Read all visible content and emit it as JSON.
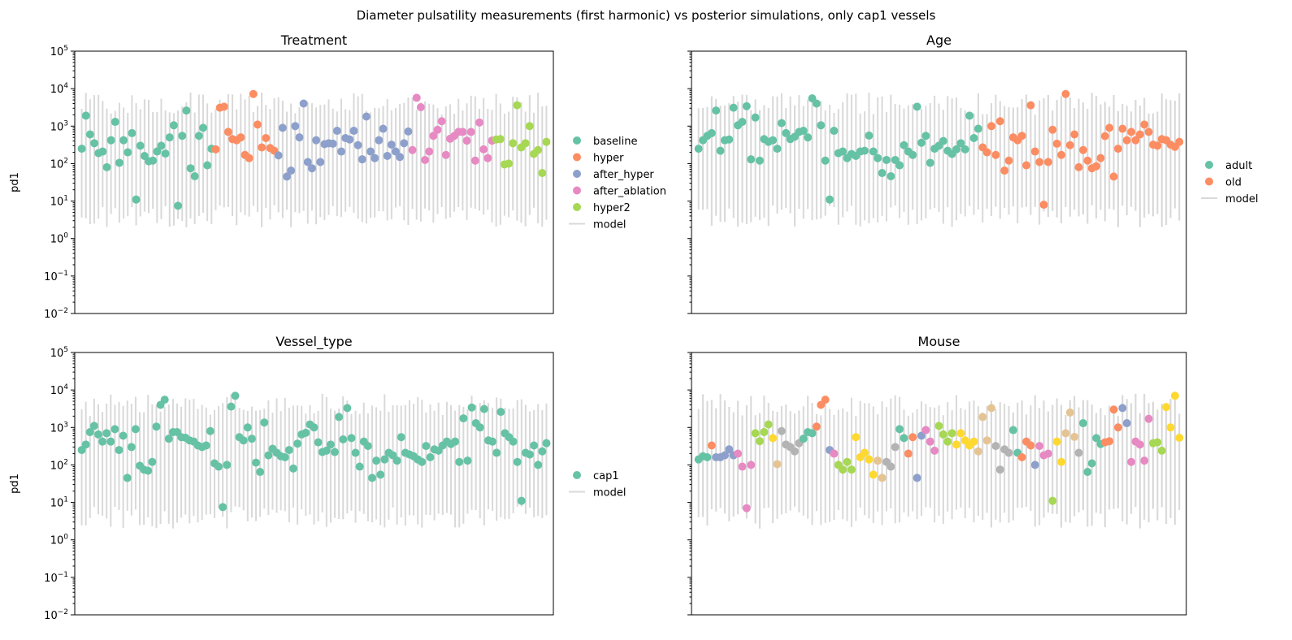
{
  "title": "Diameter pulsatility measurements (first harmonic) vs posterior simulations, only cap1 vessels",
  "chart_data": [
    {
      "type": "scatter",
      "title": "Treatment",
      "ylabel": "pd1",
      "yscale": "log",
      "ylim": [
        0.01,
        100000
      ],
      "yticks": [
        {
          "base": "10",
          "exp": "5",
          "value": 100000
        },
        {
          "base": "10",
          "exp": "4",
          "value": 10000
        },
        {
          "base": "10",
          "exp": "3",
          "value": 1000
        },
        {
          "base": "10",
          "exp": "2",
          "value": 100
        },
        {
          "base": "10",
          "exp": "1",
          "value": 10
        },
        {
          "base": "10",
          "exp": "0",
          "value": 1
        },
        {
          "base": "10",
          "exp": "−1",
          "value": 0.1
        },
        {
          "base": "10",
          "exp": "−2",
          "value": 0.01
        }
      ],
      "show_tick_labels": true,
      "legend_position": "outside-right",
      "legend_model_label": "model",
      "series": [
        {
          "name": "baseline",
          "color": "#66c2a5",
          "values": [
            250,
            1900,
            600,
            350,
            190,
            210,
            80,
            420,
            1300,
            105,
            420,
            200,
            650,
            11,
            300,
            160,
            115,
            120,
            210,
            300,
            185,
            500,
            1050,
            7.5,
            550,
            2600,
            75,
            46,
            550,
            900,
            90,
            250
          ]
        },
        {
          "name": "hyper",
          "color": "#fc8d62",
          "values": [
            240,
            3100,
            3300,
            700,
            450,
            420,
            500,
            170,
            140,
            7200,
            1100,
            270,
            480,
            260,
            220
          ]
        },
        {
          "name": "after_hyper",
          "color": "#8da0cb",
          "values": [
            165,
            900,
            45,
            65,
            1000,
            500,
            4000,
            110,
            75,
            420,
            110,
            330,
            350,
            340,
            750,
            210,
            480,
            440,
            750,
            310,
            130,
            1800,
            210,
            140,
            420,
            850,
            160,
            320,
            210,
            150,
            350,
            720
          ]
        },
        {
          "name": "after_ablation",
          "color": "#e78ac3",
          "values": [
            230,
            5700,
            3200,
            125,
            210,
            550,
            800,
            1350,
            170,
            460,
            550,
            700,
            700,
            410,
            700,
            120,
            1250,
            240,
            140,
            410
          ]
        },
        {
          "name": "hyper2",
          "color": "#a6d854",
          "values": [
            440,
            450,
            95,
            100,
            350,
            3600,
            270,
            350,
            1000,
            180,
            230,
            56,
            380
          ]
        }
      ],
      "model_intervals_note": "posterior simulation intervals, one per measurement"
    },
    {
      "type": "scatter",
      "title": "Age",
      "ylabel": "",
      "yscale": "log",
      "ylim": [
        0.01,
        100000
      ],
      "show_tick_labels": false,
      "legend_position": "outside-right",
      "legend_model_label": "model",
      "series": [
        {
          "name": "adult",
          "color": "#66c2a5",
          "values": [
            250,
            420,
            550,
            650,
            2600,
            220,
            420,
            440,
            3100,
            1050,
            1300,
            3400,
            130,
            1700,
            120,
            450,
            380,
            420,
            250,
            1200,
            650,
            450,
            520,
            700,
            750,
            500,
            5500,
            4000,
            1050,
            120,
            11,
            750,
            190,
            210,
            140,
            180,
            160,
            210,
            220,
            560,
            210,
            140,
            56,
            125,
            46,
            125,
            90,
            310,
            210,
            170,
            3300,
            360,
            550,
            105,
            250,
            300,
            400,
            220,
            180,
            240,
            350,
            240,
            1900,
            480,
            850
          ]
        },
        {
          "name": "old",
          "color": "#fc8d62",
          "values": [
            270,
            200,
            1000,
            170,
            1350,
            65,
            120,
            500,
            420,
            550,
            90,
            3600,
            210,
            110,
            8,
            110,
            800,
            340,
            170,
            7200,
            310,
            600,
            80,
            230,
            120,
            75,
            85,
            140,
            540,
            900,
            45,
            250,
            850,
            420,
            700,
            420,
            600,
            1100,
            700,
            320,
            300,
            450,
            420,
            320,
            280,
            380
          ]
        }
      ]
    },
    {
      "type": "scatter",
      "title": "Vessel_type",
      "ylabel": "pd1",
      "yscale": "log",
      "ylim": [
        0.01,
        100000
      ],
      "show_tick_labels": true,
      "legend_position": "outside-right",
      "legend_model_label": "model",
      "series": [
        {
          "name": "cap1",
          "color": "#66c2a5",
          "values": [
            250,
            350,
            750,
            1100,
            650,
            420,
            700,
            420,
            900,
            250,
            600,
            45,
            300,
            900,
            95,
            75,
            70,
            120,
            1050,
            4000,
            5500,
            500,
            750,
            750,
            550,
            530,
            450,
            420,
            330,
            300,
            330,
            800,
            110,
            90,
            7.5,
            100,
            3600,
            7000,
            550,
            450,
            1000,
            500,
            115,
            65,
            1350,
            180,
            270,
            210,
            170,
            160,
            250,
            80,
            370,
            650,
            720,
            1200,
            1000,
            400,
            220,
            240,
            350,
            220,
            1900,
            480,
            3300,
            520,
            210,
            90,
            420,
            320,
            45,
            130,
            55,
            140,
            210,
            180,
            130,
            550,
            210,
            190,
            170,
            140,
            120,
            320,
            160,
            260,
            240,
            330,
            420,
            360,
            420,
            120,
            1750,
            130,
            3400,
            1300,
            1000,
            3100,
            450,
            420,
            210,
            2600,
            700,
            550,
            420,
            120,
            11,
            210,
            190,
            330,
            100,
            230,
            380
          ]
        }
      ]
    },
    {
      "type": "scatter",
      "title": "Mouse",
      "ylabel": "",
      "yscale": "log",
      "ylim": [
        0.01,
        100000
      ],
      "show_tick_labels": false,
      "legend_position": "none",
      "points": [
        {
          "v": 140,
          "c": "#66c2a5"
        },
        {
          "v": 170,
          "c": "#66c2a5"
        },
        {
          "v": 160,
          "c": "#66c2a5"
        },
        {
          "v": 330,
          "c": "#fc8d62"
        },
        {
          "v": 160,
          "c": "#8da0cb"
        },
        {
          "v": 160,
          "c": "#8da0cb"
        },
        {
          "v": 180,
          "c": "#8da0cb"
        },
        {
          "v": 260,
          "c": "#8da0cb"
        },
        {
          "v": 180,
          "c": "#8da0cb"
        },
        {
          "v": 200,
          "c": "#e78ac3"
        },
        {
          "v": 90,
          "c": "#e78ac3"
        },
        {
          "v": 7,
          "c": "#e78ac3"
        },
        {
          "v": 100,
          "c": "#e78ac3"
        },
        {
          "v": 700,
          "c": "#a6d854"
        },
        {
          "v": 430,
          "c": "#a6d854"
        },
        {
          "v": 750,
          "c": "#a6d854"
        },
        {
          "v": 1200,
          "c": "#a6d854"
        },
        {
          "v": 520,
          "c": "#ffd92f"
        },
        {
          "v": 105,
          "c": "#e5c494"
        },
        {
          "v": 800,
          "c": "#b3b3b3"
        },
        {
          "v": 350,
          "c": "#b3b3b3"
        },
        {
          "v": 300,
          "c": "#b3b3b3"
        },
        {
          "v": 230,
          "c": "#b3b3b3"
        },
        {
          "v": 380,
          "c": "#b3b3b3"
        },
        {
          "v": 500,
          "c": "#66c2a5"
        },
        {
          "v": 750,
          "c": "#66c2a5"
        },
        {
          "v": 700,
          "c": "#66c2a5"
        },
        {
          "v": 1050,
          "c": "#fc8d62"
        },
        {
          "v": 4000,
          "c": "#fc8d62"
        },
        {
          "v": 5500,
          "c": "#fc8d62"
        },
        {
          "v": 250,
          "c": "#8da0cb"
        },
        {
          "v": 200,
          "c": "#e78ac3"
        },
        {
          "v": 100,
          "c": "#a6d854"
        },
        {
          "v": 75,
          "c": "#a6d854"
        },
        {
          "v": 120,
          "c": "#a6d854"
        },
        {
          "v": 75,
          "c": "#a6d854"
        },
        {
          "v": 550,
          "c": "#ffd92f"
        },
        {
          "v": 160,
          "c": "#ffd92f"
        },
        {
          "v": 210,
          "c": "#ffd92f"
        },
        {
          "v": 140,
          "c": "#ffd92f"
        },
        {
          "v": 55,
          "c": "#ffd92f"
        },
        {
          "v": 130,
          "c": "#e5c494"
        },
        {
          "v": 45,
          "c": "#e5c494"
        },
        {
          "v": 120,
          "c": "#b3b3b3"
        },
        {
          "v": 90,
          "c": "#b3b3b3"
        },
        {
          "v": 300,
          "c": "#b3b3b3"
        },
        {
          "v": 900,
          "c": "#66c2a5"
        },
        {
          "v": 520,
          "c": "#66c2a5"
        },
        {
          "v": 200,
          "c": "#fc8d62"
        },
        {
          "v": 550,
          "c": "#fc8d62"
        },
        {
          "v": 45,
          "c": "#8da0cb"
        },
        {
          "v": 600,
          "c": "#8da0cb"
        },
        {
          "v": 850,
          "c": "#e78ac3"
        },
        {
          "v": 420,
          "c": "#e78ac3"
        },
        {
          "v": 240,
          "c": "#e78ac3"
        },
        {
          "v": 1100,
          "c": "#a6d854"
        },
        {
          "v": 650,
          "c": "#a6d854"
        },
        {
          "v": 420,
          "c": "#a6d854"
        },
        {
          "v": 700,
          "c": "#a6d854"
        },
        {
          "v": 350,
          "c": "#ffd92f"
        },
        {
          "v": 700,
          "c": "#ffd92f"
        },
        {
          "v": 450,
          "c": "#ffd92f"
        },
        {
          "v": 330,
          "c": "#ffd92f"
        },
        {
          "v": 420,
          "c": "#ffd92f"
        },
        {
          "v": 230,
          "c": "#e5c494"
        },
        {
          "v": 1900,
          "c": "#e5c494"
        },
        {
          "v": 450,
          "c": "#e5c494"
        },
        {
          "v": 3300,
          "c": "#e5c494"
        },
        {
          "v": 320,
          "c": "#b3b3b3"
        },
        {
          "v": 75,
          "c": "#b3b3b3"
        },
        {
          "v": 260,
          "c": "#b3b3b3"
        },
        {
          "v": 210,
          "c": "#b3b3b3"
        },
        {
          "v": 850,
          "c": "#66c2a5"
        },
        {
          "v": 210,
          "c": "#66c2a5"
        },
        {
          "v": 160,
          "c": "#fc8d62"
        },
        {
          "v": 420,
          "c": "#fc8d62"
        },
        {
          "v": 330,
          "c": "#fc8d62"
        },
        {
          "v": 100,
          "c": "#8da0cb"
        },
        {
          "v": 320,
          "c": "#e78ac3"
        },
        {
          "v": 180,
          "c": "#e78ac3"
        },
        {
          "v": 200,
          "c": "#e78ac3"
        },
        {
          "v": 11,
          "c": "#a6d854"
        },
        {
          "v": 420,
          "c": "#ffd92f"
        },
        {
          "v": 120,
          "c": "#ffd92f"
        },
        {
          "v": 700,
          "c": "#e5c494"
        },
        {
          "v": 2500,
          "c": "#e5c494"
        },
        {
          "v": 560,
          "c": "#e5c494"
        },
        {
          "v": 210,
          "c": "#b3b3b3"
        },
        {
          "v": 1300,
          "c": "#66c2a5"
        },
        {
          "v": 65,
          "c": "#66c2a5"
        },
        {
          "v": 110,
          "c": "#66c2a5"
        },
        {
          "v": 520,
          "c": "#66c2a5"
        },
        {
          "v": 360,
          "c": "#66c2a5"
        },
        {
          "v": 400,
          "c": "#fc8d62"
        },
        {
          "v": 430,
          "c": "#fc8d62"
        },
        {
          "v": 3000,
          "c": "#fc8d62"
        },
        {
          "v": 1000,
          "c": "#fc8d62"
        },
        {
          "v": 3300,
          "c": "#8da0cb"
        },
        {
          "v": 1300,
          "c": "#8da0cb"
        },
        {
          "v": 120,
          "c": "#e78ac3"
        },
        {
          "v": 420,
          "c": "#e78ac3"
        },
        {
          "v": 350,
          "c": "#e78ac3"
        },
        {
          "v": 130,
          "c": "#e78ac3"
        },
        {
          "v": 1700,
          "c": "#e78ac3"
        },
        {
          "v": 380,
          "c": "#a6d854"
        },
        {
          "v": 400,
          "c": "#a6d854"
        },
        {
          "v": 240,
          "c": "#a6d854"
        },
        {
          "v": 3500,
          "c": "#ffd92f"
        },
        {
          "v": 1000,
          "c": "#ffd92f"
        },
        {
          "v": 7000,
          "c": "#ffd92f"
        },
        {
          "v": 530,
          "c": "#ffd92f"
        }
      ]
    }
  ]
}
